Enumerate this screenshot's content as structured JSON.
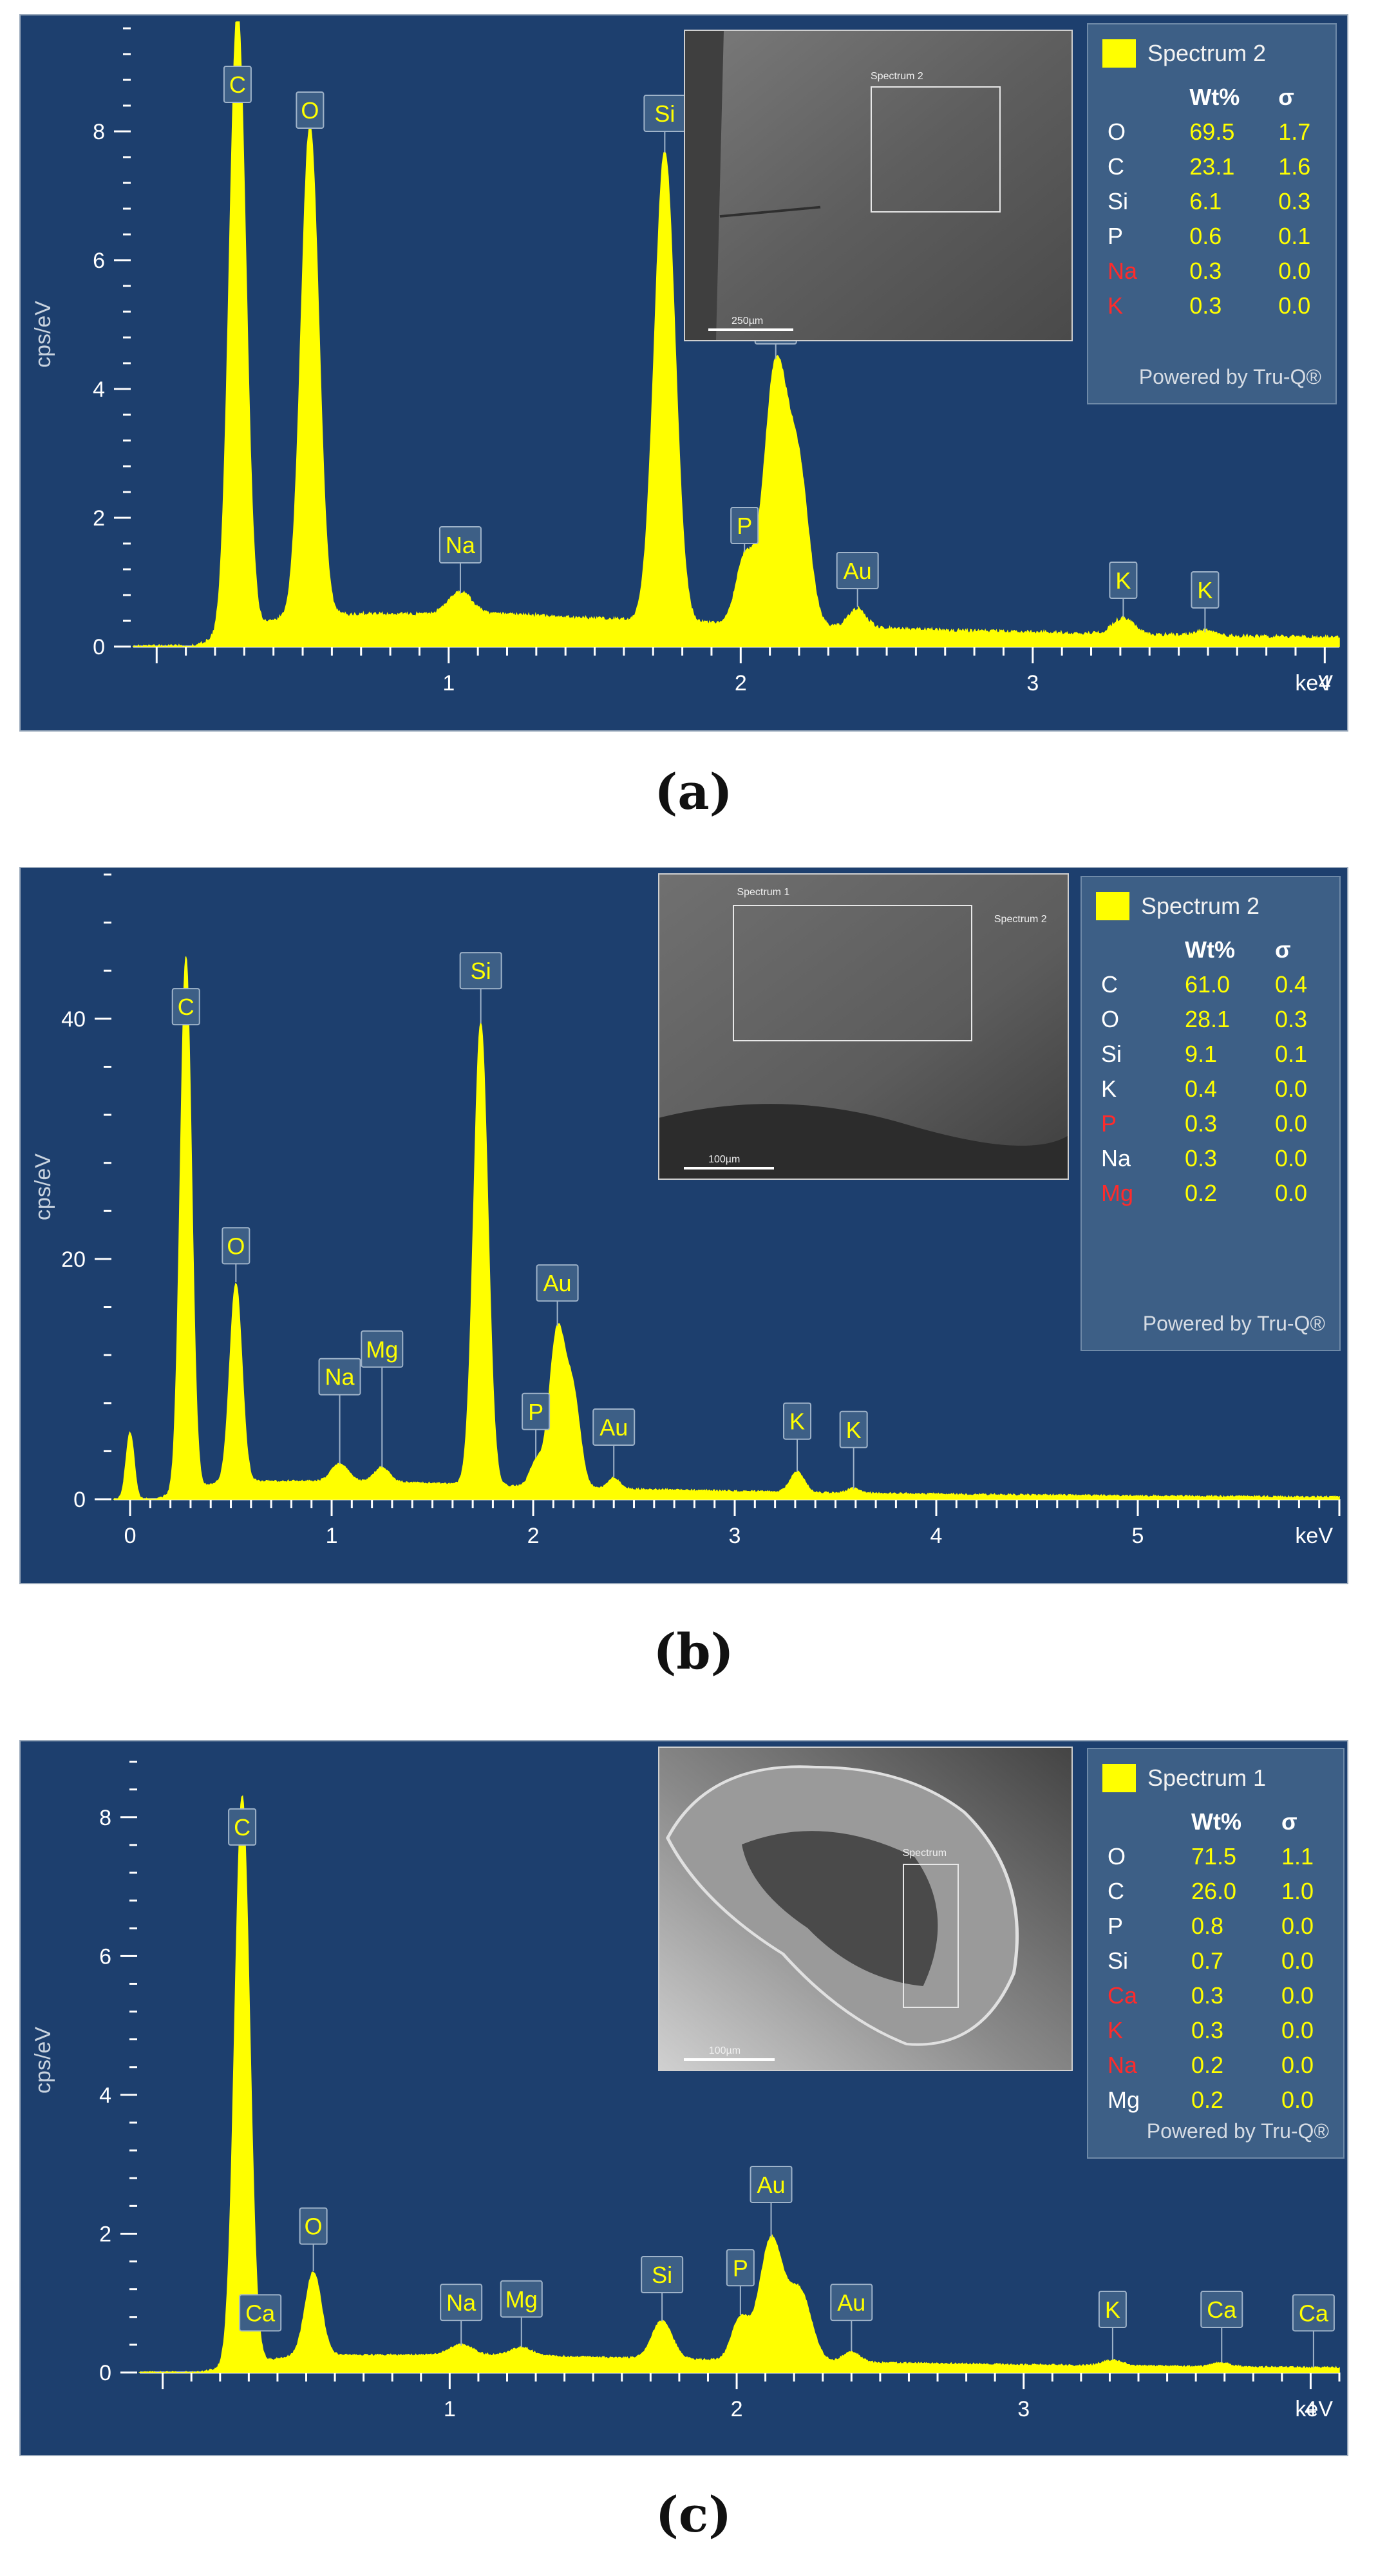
{
  "panels": {
    "a": {
      "caption": "(a)",
      "quant": {
        "title": "Spectrum 2",
        "col_wt": "Wt%",
        "col_sigma": "σ",
        "powered": "Powered by Tru-Q®",
        "rows": [
          {
            "el": "O",
            "wt": "69.5",
            "sigma": "1.7",
            "red": false
          },
          {
            "el": "C",
            "wt": "23.1",
            "sigma": "1.6",
            "red": false
          },
          {
            "el": "Si",
            "wt": "6.1",
            "sigma": "0.3",
            "red": false
          },
          {
            "el": "P",
            "wt": "0.6",
            "sigma": "0.1",
            "red": false
          },
          {
            "el": "Na",
            "wt": "0.3",
            "sigma": "0.0",
            "red": true
          },
          {
            "el": "K",
            "wt": "0.3",
            "sigma": "0.0",
            "red": true
          }
        ]
      },
      "sem": {
        "scale": "250µm",
        "roi": "Spectrum 2"
      }
    },
    "b": {
      "caption": "(b)",
      "quant": {
        "title": "Spectrum 2",
        "col_wt": "Wt%",
        "col_sigma": "σ",
        "powered": "Powered by Tru-Q®",
        "rows": [
          {
            "el": "C",
            "wt": "61.0",
            "sigma": "0.4",
            "red": false
          },
          {
            "el": "O",
            "wt": "28.1",
            "sigma": "0.3",
            "red": false
          },
          {
            "el": "Si",
            "wt": "9.1",
            "sigma": "0.1",
            "red": false
          },
          {
            "el": "K",
            "wt": "0.4",
            "sigma": "0.0",
            "red": false
          },
          {
            "el": "P",
            "wt": "0.3",
            "sigma": "0.0",
            "red": true
          },
          {
            "el": "Na",
            "wt": "0.3",
            "sigma": "0.0",
            "red": false
          },
          {
            "el": "Mg",
            "wt": "0.2",
            "sigma": "0.0",
            "red": true
          }
        ]
      },
      "sem": {
        "scale": "100µm",
        "roi": "Spectrum 1",
        "roi2": "Spectrum 2"
      }
    },
    "c": {
      "caption": "(c)",
      "quant": {
        "title": "Spectrum 1",
        "col_wt": "Wt%",
        "col_sigma": "σ",
        "powered": "Powered by Tru-Q®",
        "rows": [
          {
            "el": "O",
            "wt": "71.5",
            "sigma": "1.1",
            "red": false
          },
          {
            "el": "C",
            "wt": "26.0",
            "sigma": "1.0",
            "red": false
          },
          {
            "el": "P",
            "wt": "0.8",
            "sigma": "0.0",
            "red": false
          },
          {
            "el": "Si",
            "wt": "0.7",
            "sigma": "0.0",
            "red": false
          },
          {
            "el": "Ca",
            "wt": "0.3",
            "sigma": "0.0",
            "red": true
          },
          {
            "el": "K",
            "wt": "0.3",
            "sigma": "0.0",
            "red": true
          },
          {
            "el": "Na",
            "wt": "0.2",
            "sigma": "0.0",
            "red": true
          },
          {
            "el": "Mg",
            "wt": "0.2",
            "sigma": "0.0",
            "red": false
          }
        ]
      },
      "sem": {
        "scale": "100µm",
        "roi": "Spectrum"
      }
    }
  },
  "chart_data": [
    {
      "type": "line",
      "title": "",
      "xlabel": "keV",
      "ylabel": "cps/eV",
      "xlim": [
        -0.08,
        4.05
      ],
      "ylim": [
        0,
        9.7
      ],
      "xticks": [
        1,
        2,
        3,
        4
      ],
      "yticks": [
        0,
        2,
        4,
        6,
        8
      ],
      "background": "#1d3f6e",
      "fill_color": "#ffff00",
      "series": [
        {
          "peaks": [
            {
              "x": 0.277,
              "y": 9.7,
              "w": 0.028
            },
            {
              "x": 0.525,
              "y": 7.6,
              "w": 0.03
            },
            {
              "x": 1.04,
              "y": 0.35,
              "w": 0.04
            },
            {
              "x": 1.74,
              "y": 7.3,
              "w": 0.035
            },
            {
              "x": 2.013,
              "y": 1.0,
              "w": 0.03
            },
            {
              "x": 2.12,
              "y": 4.0,
              "w": 0.04
            },
            {
              "x": 2.2,
              "y": 2.2,
              "w": 0.035
            },
            {
              "x": 2.4,
              "y": 0.3,
              "w": 0.03
            },
            {
              "x": 3.31,
              "y": 0.25,
              "w": 0.035
            },
            {
              "x": 3.59,
              "y": 0.08,
              "w": 0.03
            }
          ],
          "background_level": 0.5
        }
      ],
      "annotations": [
        {
          "label": "C",
          "x": 0.277,
          "y": 8.45
        },
        {
          "label": "O",
          "x": 0.525,
          "y": 8.05
        },
        {
          "label": "Na",
          "x": 1.04,
          "y": 1.3
        },
        {
          "label": "Si",
          "x": 1.74,
          "y": 8.0
        },
        {
          "label": "Au",
          "x": 2.12,
          "y": 4.7
        },
        {
          "label": "P",
          "x": 2.013,
          "y": 1.6
        },
        {
          "label": "Au",
          "x": 2.4,
          "y": 0.9
        },
        {
          "label": "K",
          "x": 3.31,
          "y": 0.75
        },
        {
          "label": "K",
          "x": 3.59,
          "y": 0.6
        }
      ]
    },
    {
      "type": "line",
      "title": "",
      "xlabel": "keV",
      "ylabel": "cps/eV",
      "xlim": [
        -0.08,
        6.0
      ],
      "ylim": [
        0,
        52
      ],
      "xticks": [
        0,
        1,
        2,
        3,
        4,
        5
      ],
      "yticks": [
        0,
        20,
        40
      ],
      "background": "#1d3f6e",
      "fill_color": "#ffff00",
      "series": [
        {
          "peaks": [
            {
              "x": 0.0,
              "y": 5.5,
              "w": 0.02
            },
            {
              "x": 0.277,
              "y": 44.5,
              "w": 0.028
            },
            {
              "x": 0.525,
              "y": 16.5,
              "w": 0.03
            },
            {
              "x": 1.04,
              "y": 1.5,
              "w": 0.04
            },
            {
              "x": 1.25,
              "y": 1.2,
              "w": 0.035
            },
            {
              "x": 1.74,
              "y": 38.5,
              "w": 0.035
            },
            {
              "x": 2.013,
              "y": 2.0,
              "w": 0.03
            },
            {
              "x": 2.12,
              "y": 13.0,
              "w": 0.04
            },
            {
              "x": 2.2,
              "y": 7.0,
              "w": 0.035
            },
            {
              "x": 2.4,
              "y": 0.9,
              "w": 0.03
            },
            {
              "x": 3.31,
              "y": 1.7,
              "w": 0.035
            },
            {
              "x": 3.59,
              "y": 0.4,
              "w": 0.03
            }
          ],
          "background_level": 1.5
        }
      ],
      "annotations": [
        {
          "label": "C",
          "x": 0.277,
          "y": 39.5
        },
        {
          "label": "O",
          "x": 0.525,
          "y": 19.6
        },
        {
          "label": "Na",
          "x": 1.04,
          "y": 8.7
        },
        {
          "label": "Mg",
          "x": 1.25,
          "y": 11.0
        },
        {
          "label": "Si",
          "x": 1.74,
          "y": 42.5
        },
        {
          "label": "Au",
          "x": 2.12,
          "y": 16.5
        },
        {
          "label": "P",
          "x": 2.013,
          "y": 5.8
        },
        {
          "label": "Au",
          "x": 2.4,
          "y": 4.5
        },
        {
          "label": "K",
          "x": 3.31,
          "y": 5.0
        },
        {
          "label": "K",
          "x": 3.59,
          "y": 4.3
        }
      ]
    },
    {
      "type": "line",
      "title": "",
      "xlabel": "keV",
      "ylabel": "cps/eV",
      "xlim": [
        -0.08,
        4.1
      ],
      "ylim": [
        0,
        9.0
      ],
      "xticks": [
        1,
        2,
        3,
        4
      ],
      "yticks": [
        0,
        2,
        4,
        6,
        8
      ],
      "background": "#1d3f6e",
      "fill_color": "#ffff00",
      "series": [
        {
          "peaks": [
            {
              "x": 0.277,
              "y": 8.2,
              "w": 0.026
            },
            {
              "x": 0.525,
              "y": 1.2,
              "w": 0.028
            },
            {
              "x": 1.04,
              "y": 0.15,
              "w": 0.04
            },
            {
              "x": 1.25,
              "y": 0.12,
              "w": 0.035
            },
            {
              "x": 1.74,
              "y": 0.55,
              "w": 0.035
            },
            {
              "x": 2.013,
              "y": 0.6,
              "w": 0.03
            },
            {
              "x": 2.12,
              "y": 1.75,
              "w": 0.04
            },
            {
              "x": 2.22,
              "y": 1.0,
              "w": 0.04
            },
            {
              "x": 2.4,
              "y": 0.15,
              "w": 0.03
            },
            {
              "x": 3.31,
              "y": 0.08,
              "w": 0.035
            },
            {
              "x": 3.69,
              "y": 0.06,
              "w": 0.03
            }
          ],
          "background_level": 0.25
        }
      ],
      "annotations": [
        {
          "label": "C",
          "x": 0.277,
          "y": 7.6
        },
        {
          "label": "Ca",
          "x": 0.34,
          "y": 0.6
        },
        {
          "label": "O",
          "x": 0.525,
          "y": 1.85
        },
        {
          "label": "Na",
          "x": 1.04,
          "y": 0.75
        },
        {
          "label": "Mg",
          "x": 1.25,
          "y": 0.8
        },
        {
          "label": "Si",
          "x": 1.74,
          "y": 1.15
        },
        {
          "label": "P",
          "x": 2.013,
          "y": 1.25
        },
        {
          "label": "Au",
          "x": 2.12,
          "y": 2.45
        },
        {
          "label": "Au",
          "x": 2.4,
          "y": 0.75
        },
        {
          "label": "K",
          "x": 3.31,
          "y": 0.65
        },
        {
          "label": "Ca",
          "x": 3.69,
          "y": 0.65
        },
        {
          "label": "Ca",
          "x": 4.01,
          "y": 0.6
        }
      ]
    }
  ]
}
